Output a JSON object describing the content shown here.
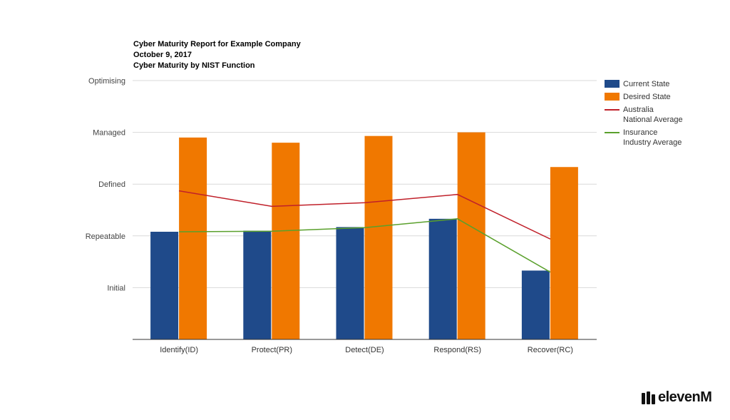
{
  "titles": {
    "line1": "Cyber Maturity Report for Example Company",
    "line2": "October 9, 2017",
    "line3": "Cyber Maturity by NIST Function"
  },
  "chart_data": {
    "type": "bar",
    "categories": [
      "Identify(ID)",
      "Protect(PR)",
      "Detect(DE)",
      "Respond(RS)",
      "Recover(RC)"
    ],
    "y_levels": [
      "Initial",
      "Repeatable",
      "Defined",
      "Managed",
      "Optimising"
    ],
    "ylim": [
      0,
      5
    ],
    "grid": true,
    "legend_position": "right",
    "series": [
      {
        "name": "Current State",
        "kind": "bar",
        "color": "#1f4a8a",
        "values": [
          2.08,
          2.1,
          2.17,
          2.33,
          1.33
        ]
      },
      {
        "name": "Desired State",
        "kind": "bar",
        "color": "#f07800",
        "values": [
          3.9,
          3.8,
          3.93,
          4.0,
          3.33
        ]
      },
      {
        "name": "Australia National Average",
        "legend_lines": [
          "Australia",
          "National Average"
        ],
        "kind": "line",
        "color": "#c0202a",
        "values": [
          2.87,
          2.57,
          2.64,
          2.8,
          1.94
        ]
      },
      {
        "name": "Insurance Industry Average",
        "legend_lines": [
          "Insurance",
          "Industry Average"
        ],
        "kind": "line",
        "color": "#5aa02c",
        "values": [
          2.08,
          2.09,
          2.16,
          2.33,
          1.3
        ]
      }
    ]
  },
  "brand": {
    "text": "elevenM"
  }
}
